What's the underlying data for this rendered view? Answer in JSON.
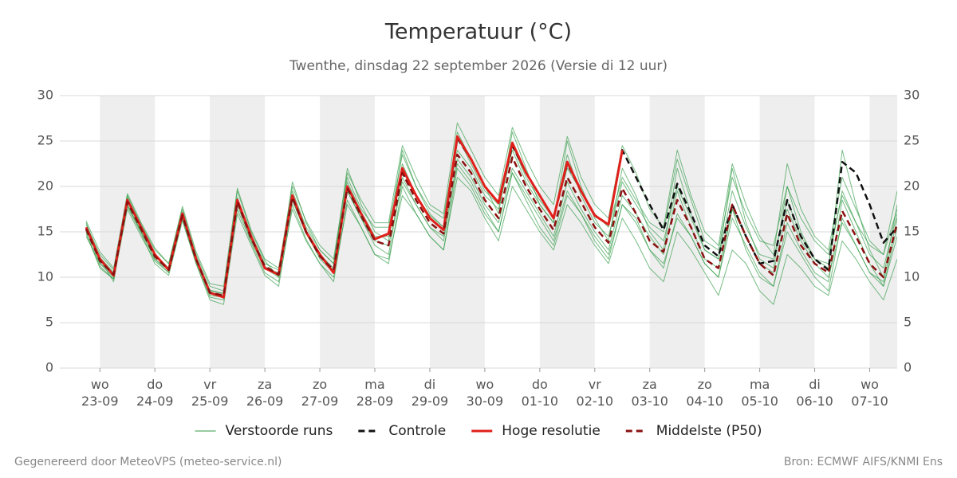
{
  "chart_data": {
    "type": "line",
    "title": "Temperatuur (°C)",
    "subtitle": "Twenthe, dinsdag 22 september 2026 (Versie di 12 uur)",
    "footer_left": "Gegenereerd door MeteoVPS (meteo-service.nl)",
    "footer_right": "Bron: ECMWF AIFS/KNMI Ens",
    "x": [
      -6,
      0,
      6,
      12,
      18,
      24,
      30,
      36,
      42,
      48,
      54,
      60,
      66,
      72,
      78,
      84,
      90,
      96,
      102,
      108,
      114,
      120,
      126,
      132,
      138,
      144,
      150,
      156,
      162,
      168,
      174,
      180,
      186,
      192,
      198,
      204,
      210,
      216,
      222,
      228,
      234,
      240,
      246,
      252,
      258,
      264,
      270,
      276,
      282,
      288,
      294,
      300,
      306,
      312,
      318,
      324,
      330,
      336,
      342,
      348
    ],
    "xlim": [
      -17.5,
      348
    ],
    "xticks": [
      {
        "value": 0,
        "label": "wo 23-09"
      },
      {
        "value": 24,
        "label": "do 24-09"
      },
      {
        "value": 48,
        "label": "vr 25-09"
      },
      {
        "value": 72,
        "label": "za 26-09"
      },
      {
        "value": 96,
        "label": "zo 27-09"
      },
      {
        "value": 120,
        "label": "ma 28-09"
      },
      {
        "value": 144,
        "label": "di 29-09"
      },
      {
        "value": 168,
        "label": "wo 30-09"
      },
      {
        "value": 192,
        "label": "do 01-10"
      },
      {
        "value": 216,
        "label": "vr 02-10"
      },
      {
        "value": 240,
        "label": "za 03-10"
      },
      {
        "value": 264,
        "label": "zo 04-10"
      },
      {
        "value": 288,
        "label": "ma 05-10"
      },
      {
        "value": 312,
        "label": "di 06-10"
      },
      {
        "value": 336,
        "label": "wo 07-10"
      }
    ],
    "ylim": [
      0,
      30
    ],
    "yticks": [
      0,
      5,
      10,
      15,
      20,
      25,
      30
    ],
    "grid": true,
    "legend": "bottom",
    "ensemble": {
      "name": "Verstoorde runs",
      "color": "#2e9a44",
      "runs": [
        [
          15.8,
          12.5,
          10.8,
          19,
          15.8,
          13,
          11.5,
          17.5,
          12.5,
          9,
          8.5,
          19.5,
          15,
          11.8,
          10,
          20.5,
          16,
          13,
          11.5,
          22,
          18,
          15,
          14,
          24,
          20,
          17,
          15.5,
          26,
          23,
          20,
          17,
          26,
          22,
          18,
          16,
          25,
          20,
          16.5,
          14,
          22,
          19,
          15,
          13,
          22,
          17,
          13,
          12,
          22,
          16,
          12,
          11,
          20,
          15,
          12,
          11,
          24,
          18,
          13,
          10,
          18
        ],
        [
          14.8,
          11,
          9.8,
          17.8,
          14.8,
          11.5,
          10.2,
          16.2,
          11.5,
          7.8,
          7.5,
          17.5,
          13.8,
          10.5,
          9.5,
          17.5,
          14,
          11.5,
          10,
          18,
          15.5,
          12.5,
          12,
          19,
          17,
          14.5,
          13,
          21,
          19.5,
          16.5,
          14,
          20,
          17.5,
          15,
          13,
          18,
          16,
          13.5,
          11.5,
          16.5,
          14,
          11,
          9.5,
          15,
          13,
          10.5,
          8,
          13,
          11.5,
          8.5,
          7,
          12.5,
          11,
          9,
          8,
          14,
          12,
          9.5,
          7.5,
          12
        ],
        [
          15.5,
          11.5,
          10,
          18.8,
          15.5,
          12.5,
          11,
          17,
          12.2,
          8.5,
          8.2,
          18.8,
          14.5,
          11,
          10.5,
          19.5,
          15.5,
          13,
          11.5,
          21,
          17.5,
          15.5,
          15.5,
          23.5,
          20,
          17.5,
          16.5,
          25.5,
          22.5,
          19.5,
          18,
          24.5,
          21,
          18.5,
          16.5,
          22,
          19.5,
          17,
          15.5,
          21,
          18.5,
          16,
          15,
          23,
          18.5,
          14,
          13,
          21,
          17,
          14,
          13.5,
          20,
          16.5,
          14,
          12.5,
          19,
          16,
          13.5,
          12.5,
          17.5
        ],
        [
          16,
          12,
          9.5,
          18,
          15,
          12,
          10.5,
          16.5,
          11.8,
          8,
          7.8,
          18,
          14,
          11,
          10,
          19,
          15,
          12,
          10.5,
          19.5,
          16.5,
          13.5,
          12.5,
          21,
          18,
          15.5,
          14,
          22.5,
          20.5,
          17.5,
          15,
          21.5,
          19,
          16.5,
          14,
          19.5,
          17,
          14,
          12,
          18,
          16.5,
          13,
          11,
          17,
          14.5,
          11.5,
          10,
          16.5,
          13.5,
          10.5,
          9,
          16,
          13,
          10.5,
          9.5,
          18.5,
          15,
          11.5,
          9,
          15.5
        ],
        [
          15.2,
          12.2,
          10.5,
          18.5,
          15.2,
          12.5,
          11,
          17.2,
          12.2,
          8.6,
          8.2,
          18.6,
          14.6,
          11.5,
          10.8,
          18.5,
          14.8,
          12.5,
          11,
          20.5,
          17.2,
          14.5,
          14.5,
          22.5,
          19,
          16.8,
          15.5,
          24,
          22,
          19,
          17.5,
          24,
          20.5,
          18,
          16,
          23.5,
          19,
          16,
          14.5,
          20.5,
          18,
          15.5,
          14,
          20,
          16.5,
          13,
          12,
          19.5,
          15.5,
          12.5,
          12,
          18.5,
          14.5,
          12,
          11.5,
          19.5,
          16,
          12.5,
          11,
          17
        ],
        [
          15,
          11.2,
          9.8,
          17.5,
          14.5,
          11.8,
          10.5,
          16.5,
          11.5,
          7.5,
          7,
          17,
          13.5,
          10.2,
          9,
          18,
          14.2,
          11.5,
          9.5,
          18.5,
          15.5,
          12.5,
          11.5,
          20,
          17,
          14.5,
          13,
          22,
          20,
          17,
          15,
          21.5,
          18.5,
          15.5,
          13.5,
          19,
          17,
          14.5,
          12.5,
          18,
          16,
          13,
          11.5,
          16.5,
          14.5,
          11.5,
          10,
          17.5,
          13,
          10,
          9,
          15,
          12.5,
          10,
          8.5,
          16.5,
          13.5,
          10.5,
          9,
          14.5
        ],
        [
          16.2,
          12.8,
          11,
          19.2,
          16,
          13.2,
          11.5,
          17.8,
          12.8,
          9.3,
          9,
          19.8,
          15.2,
          12,
          11,
          20,
          16.2,
          13.5,
          12,
          21.5,
          18.5,
          16,
          16,
          24.5,
          21,
          18,
          17,
          27,
          24,
          21,
          19,
          26.5,
          23,
          20,
          18,
          25.5,
          21,
          18,
          16.5,
          24.5,
          21.5,
          17.5,
          15.5,
          24,
          19,
          15,
          13.5,
          22.5,
          18,
          14.5,
          12.5,
          22.5,
          17.5,
          14.5,
          13,
          21,
          17.5,
          14,
          12.5,
          19.5
        ],
        [
          14.5,
          11.5,
          10.5,
          18,
          15,
          12,
          10.8,
          16.8,
          12,
          8.2,
          8,
          18.2,
          14.2,
          11.2,
          10.2,
          18.5,
          14.8,
          12.2,
          10.8,
          19.5,
          16.5,
          14,
          13.5,
          20.5,
          18,
          15.5,
          14.5,
          23,
          21,
          18,
          16,
          22,
          19.5,
          17,
          14.5,
          20.5,
          17.5,
          15,
          13,
          19,
          17,
          14.5,
          12.5,
          19.5,
          15.5,
          12,
          11,
          17.5,
          14.5,
          11.5,
          10.5,
          17.5,
          14,
          11.5,
          10,
          16,
          13.5,
          10.5,
          9.5,
          16.5
        ]
      ]
    },
    "series": [
      {
        "name": "Controle",
        "color": "#111111",
        "dashed": true,
        "values": [
          15.3,
          12,
          10.2,
          18.5,
          15.5,
          12.5,
          10.8,
          17,
          12,
          8.3,
          7.8,
          18.3,
          14.5,
          11,
          10.3,
          19,
          15,
          12.5,
          10.5,
          20,
          17,
          14.2,
          14.8,
          21.5,
          19,
          16.5,
          15.2,
          25.3,
          23,
          20,
          18.2,
          24.5,
          21.5,
          19,
          16.5,
          22.5,
          19.5,
          16.8,
          15.8,
          24,
          21,
          18,
          15.2,
          20.3,
          17,
          13.5,
          12.3,
          18,
          14.5,
          11.5,
          11.8,
          18.5,
          14.5,
          12,
          10.8,
          22.7,
          21.5,
          18,
          13.8,
          15.5
        ]
      },
      {
        "name": "Hoge resolutie",
        "color": "#e0201b",
        "dashed": false,
        "values": [
          15.5,
          12,
          10.2,
          18.5,
          15.5,
          12.5,
          10.8,
          17,
          12,
          8.3,
          7.8,
          18.5,
          14.5,
          11,
          10.3,
          19,
          15,
          12.5,
          10.5,
          20,
          17,
          14.2,
          14.8,
          22,
          19,
          16.5,
          15.2,
          25.5,
          23,
          20,
          18.2,
          24.8,
          21.5,
          19,
          16.5,
          22.7,
          19.5,
          16.8,
          15.8,
          24,
          null,
          null,
          null,
          null,
          null,
          null,
          null,
          null,
          null,
          null,
          null,
          null,
          null,
          null,
          null,
          null,
          null,
          null,
          null,
          null
        ]
      },
      {
        "name": "Middelste (P50)",
        "color": "#8b1010",
        "dashed": true,
        "values": [
          15.3,
          11.8,
          10.3,
          18.3,
          15.3,
          12.3,
          10.8,
          16.8,
          12,
          8.3,
          8,
          18.3,
          14.3,
          11.2,
          10.3,
          18.8,
          15,
          12.3,
          10.8,
          19.8,
          16.8,
          14,
          13.5,
          21.5,
          18.5,
          16,
          14.8,
          23.5,
          21.5,
          18.5,
          16.5,
          23.2,
          20,
          17.5,
          15.2,
          21,
          18.3,
          15.5,
          13.8,
          19.8,
          17,
          14,
          12.8,
          18.5,
          15.5,
          12,
          11,
          18,
          14.5,
          11.5,
          10.2,
          17,
          13.5,
          11.5,
          10.5,
          17.3,
          14.5,
          11.5,
          10,
          16
        ]
      }
    ]
  }
}
